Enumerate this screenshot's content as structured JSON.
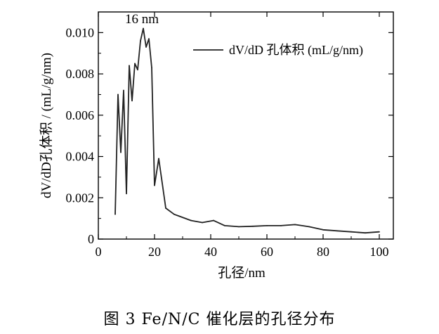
{
  "caption": "图 3   Fe/N/C 催化层的孔径分布",
  "chart_data": {
    "type": "line",
    "title": "",
    "xlabel": "孔径/nm",
    "ylabel": "dV/dD孔体积 / (mL/g/nm)",
    "xlim": [
      0,
      105
    ],
    "ylim": [
      0,
      0.011
    ],
    "xticks": [
      "0",
      "20",
      "40",
      "60",
      "80",
      "100"
    ],
    "yticks": [
      "0",
      "0.002",
      "0.004",
      "0.006",
      "0.008",
      "0.010"
    ],
    "annotation": "16 nm",
    "legend": {
      "position": "top-right",
      "label": "dV/dD 孔体积 (mL/g/nm)"
    },
    "series": [
      {
        "name": "dV/dD 孔体积 (mL/g/nm)",
        "x": [
          6,
          7,
          8,
          9,
          10,
          11,
          12,
          13,
          14,
          15,
          16,
          17,
          18,
          19,
          20,
          21.5,
          24,
          27,
          33,
          37,
          41,
          45,
          50,
          55,
          60,
          65,
          70,
          75,
          80,
          85,
          90,
          95,
          100
        ],
        "y": [
          0.0012,
          0.007,
          0.0042,
          0.0072,
          0.0022,
          0.0084,
          0.0067,
          0.0085,
          0.0082,
          0.0096,
          0.0102,
          0.0093,
          0.0097,
          0.0083,
          0.0026,
          0.0039,
          0.0015,
          0.0012,
          0.0009,
          0.0008,
          0.0009,
          0.00065,
          0.0006,
          0.00062,
          0.00065,
          0.00065,
          0.0007,
          0.0006,
          0.00045,
          0.0004,
          0.00035,
          0.0003,
          0.00035
        ]
      }
    ]
  }
}
